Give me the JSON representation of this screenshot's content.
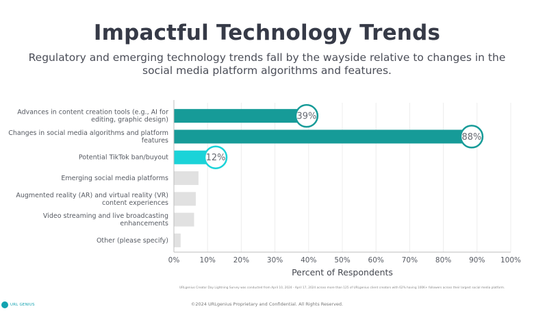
{
  "header": {
    "title": "Impactful Technology Trends",
    "subtitle": "Regulatory and emerging technology trends fall by the wayside relative to changes in the social media platform algorithms and features."
  },
  "chart_data": {
    "type": "bar",
    "orientation": "horizontal",
    "categories": [
      [
        "Advances in content creation tools (e.g., AI for",
        "editing, graphic design)"
      ],
      [
        "Changes in social media algorithms and platform",
        "features"
      ],
      [
        "Potential TikTok ban/buyout"
      ],
      [
        "Emerging social media platforms"
      ],
      [
        "Augmented reality (AR) and virtual reality (VR)",
        "content experiences"
      ],
      [
        "Video streaming and live broadcasting",
        "enhancements"
      ],
      [
        "Other (please specify)"
      ]
    ],
    "values": [
      39,
      88,
      12,
      7.3,
      6.5,
      6,
      2
    ],
    "data_labels": [
      "39%",
      "88%",
      "12%",
      null,
      null,
      null,
      null
    ],
    "bar_colors": [
      "#169b98",
      "#169b98",
      "#1bd3d8",
      "#e1e1e1",
      "#e1e1e1",
      "#e1e1e1",
      "#e1e1e1"
    ],
    "label_ring_colors": [
      "#169b98",
      "#169b98",
      "#1bd3d8"
    ],
    "xlabel": "Percent of Respondents",
    "ylabel": "",
    "xlim": [
      0,
      100
    ],
    "x_ticks": [
      0,
      10,
      20,
      30,
      40,
      50,
      60,
      70,
      80,
      90,
      100
    ],
    "x_tick_labels": [
      "0%",
      "10%",
      "20%",
      "30%",
      "40%",
      "50%",
      "60%",
      "70%",
      "80%",
      "90%",
      "100%"
    ],
    "grid": true,
    "legend": "none"
  },
  "footer": {
    "footnote": "URLgenius Creator Day Lightning Survey was conducted from April 10, 2024 - April 17, 2024 across more than 125 of URLgenius client creators with 62% having 100K+ followers across their largest social media platform.",
    "copyright": "©2024 URLgenius Proprietary and Confidential. All Rights Reserved.",
    "logo_text": "URL GENIUS"
  }
}
